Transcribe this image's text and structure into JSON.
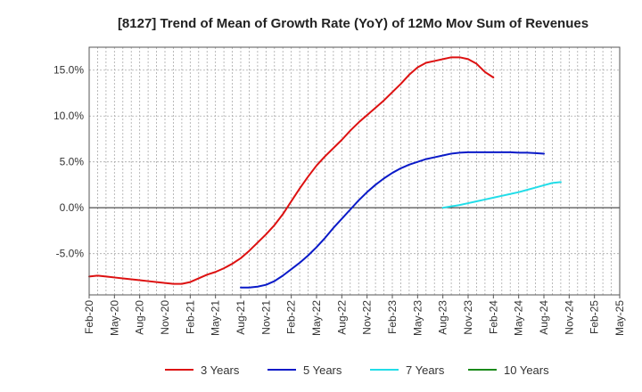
{
  "chart_data": {
    "type": "line",
    "title": "[8127]  Trend of Mean of Growth Rate (YoY) of 12Mo Mov Sum of Revenues",
    "xlabel": "",
    "ylabel": "",
    "ylim": [
      -9.5,
      17.5
    ],
    "yticks": [
      15.0,
      10.0,
      5.0,
      0.0,
      -5.0
    ],
    "ytick_labels": [
      "15.0%",
      "10.0%",
      "5.0%",
      "0.0%",
      "-5.0%"
    ],
    "x_start": "Feb-20",
    "n_months": 63,
    "x_tick_labels": [
      "Feb-20",
      "May-20",
      "Aug-20",
      "Nov-20",
      "Feb-21",
      "May-21",
      "Aug-21",
      "Nov-21",
      "Feb-22",
      "May-22",
      "Aug-22",
      "Nov-22",
      "Feb-23",
      "May-23",
      "Aug-23",
      "Nov-23",
      "Feb-24",
      "May-24",
      "Aug-24",
      "Nov-24",
      "Feb-25",
      "May-25"
    ],
    "grid": true,
    "legend_position": "bottom",
    "series": [
      {
        "name": "3 Years",
        "color": "#dd1111",
        "points": [
          [
            0,
            -7.5
          ],
          [
            1,
            -7.4
          ],
          [
            2,
            -7.5
          ],
          [
            3,
            -7.6
          ],
          [
            4,
            -7.7
          ],
          [
            5,
            -7.8
          ],
          [
            6,
            -7.9
          ],
          [
            7,
            -8.0
          ],
          [
            8,
            -8.1
          ],
          [
            9,
            -8.2
          ],
          [
            10,
            -8.3
          ],
          [
            11,
            -8.3
          ],
          [
            12,
            -8.1
          ],
          [
            13,
            -7.7
          ],
          [
            14,
            -7.3
          ],
          [
            15,
            -7.0
          ],
          [
            16,
            -6.6
          ],
          [
            17,
            -6.1
          ],
          [
            18,
            -5.5
          ],
          [
            19,
            -4.7
          ],
          [
            20,
            -3.8
          ],
          [
            21,
            -2.9
          ],
          [
            22,
            -1.9
          ],
          [
            23,
            -0.7
          ],
          [
            24,
            0.7
          ],
          [
            25,
            2.1
          ],
          [
            26,
            3.4
          ],
          [
            27,
            4.6
          ],
          [
            28,
            5.6
          ],
          [
            29,
            6.5
          ],
          [
            30,
            7.4
          ],
          [
            31,
            8.4
          ],
          [
            32,
            9.3
          ],
          [
            33,
            10.1
          ],
          [
            34,
            10.9
          ],
          [
            35,
            11.7
          ],
          [
            36,
            12.6
          ],
          [
            37,
            13.5
          ],
          [
            38,
            14.5
          ],
          [
            39,
            15.3
          ],
          [
            40,
            15.8
          ],
          [
            41,
            16.0
          ],
          [
            42,
            16.2
          ],
          [
            43,
            16.4
          ],
          [
            44,
            16.4
          ],
          [
            45,
            16.2
          ],
          [
            46,
            15.7
          ],
          [
            47,
            14.8
          ],
          [
            48,
            14.2
          ]
        ]
      },
      {
        "name": "5 Years",
        "color": "#0a1ac8",
        "points": [
          [
            18,
            -8.7
          ],
          [
            19,
            -8.7
          ],
          [
            20,
            -8.6
          ],
          [
            21,
            -8.4
          ],
          [
            22,
            -8.0
          ],
          [
            23,
            -7.4
          ],
          [
            24,
            -6.7
          ],
          [
            25,
            -6.0
          ],
          [
            26,
            -5.2
          ],
          [
            27,
            -4.3
          ],
          [
            28,
            -3.3
          ],
          [
            29,
            -2.2
          ],
          [
            30,
            -1.2
          ],
          [
            31,
            -0.2
          ],
          [
            32,
            0.8
          ],
          [
            33,
            1.7
          ],
          [
            34,
            2.5
          ],
          [
            35,
            3.2
          ],
          [
            36,
            3.8
          ],
          [
            37,
            4.3
          ],
          [
            38,
            4.7
          ],
          [
            39,
            5.0
          ],
          [
            40,
            5.3
          ],
          [
            41,
            5.5
          ],
          [
            42,
            5.7
          ],
          [
            43,
            5.9
          ],
          [
            44,
            6.0
          ],
          [
            45,
            6.05
          ],
          [
            46,
            6.05
          ],
          [
            47,
            6.05
          ],
          [
            48,
            6.05
          ],
          [
            49,
            6.05
          ],
          [
            50,
            6.05
          ],
          [
            51,
            6.0
          ],
          [
            52,
            6.0
          ],
          [
            53,
            5.95
          ],
          [
            54,
            5.9
          ]
        ]
      },
      {
        "name": "7 Years",
        "color": "#22dde8",
        "points": [
          [
            42,
            0.0
          ],
          [
            43,
            0.15
          ],
          [
            44,
            0.3
          ],
          [
            45,
            0.5
          ],
          [
            46,
            0.7
          ],
          [
            47,
            0.9
          ],
          [
            48,
            1.1
          ],
          [
            49,
            1.3
          ],
          [
            50,
            1.5
          ],
          [
            51,
            1.7
          ],
          [
            52,
            1.95
          ],
          [
            53,
            2.2
          ],
          [
            54,
            2.45
          ],
          [
            55,
            2.7
          ],
          [
            56,
            2.8
          ]
        ]
      },
      {
        "name": "10 Years",
        "color": "#1a8a1a",
        "points": []
      }
    ]
  }
}
